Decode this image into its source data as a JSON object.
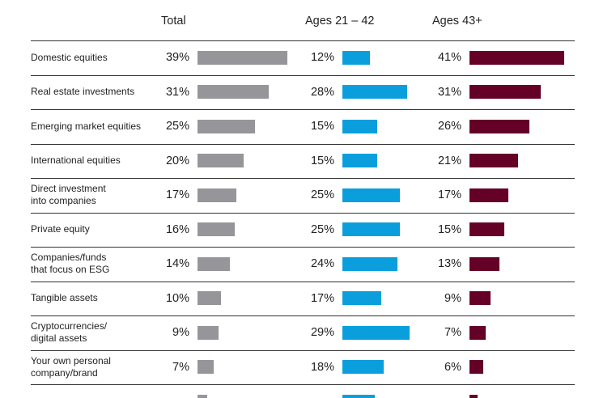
{
  "chart_data": {
    "type": "bar",
    "columns": [
      "Total",
      "Ages 21 – 42",
      "Ages 43+"
    ],
    "categories": [
      "Domestic equities",
      "Real estate investments",
      "Emerging market equities",
      "International equities",
      "Direct investment\ninto companies",
      "Private equity",
      "Companies/funds\nthat focus on ESG",
      "Tangible assets",
      "Cryptocurrencies/\ndigital assets",
      "Your own personal\ncompany/brand"
    ],
    "series": [
      {
        "name": "Total",
        "values": [
          39,
          31,
          25,
          20,
          17,
          16,
          14,
          10,
          9,
          7
        ],
        "color": "#96969a"
      },
      {
        "name": "Ages 21 – 42",
        "values": [
          12,
          28,
          15,
          15,
          25,
          25,
          24,
          17,
          29,
          18
        ],
        "color": "#0a9fdc"
      },
      {
        "name": "Ages 43+",
        "values": [
          41,
          31,
          26,
          21,
          17,
          15,
          13,
          9,
          7,
          6
        ],
        "color": "#650027"
      }
    ],
    "value_suffix": "%"
  }
}
